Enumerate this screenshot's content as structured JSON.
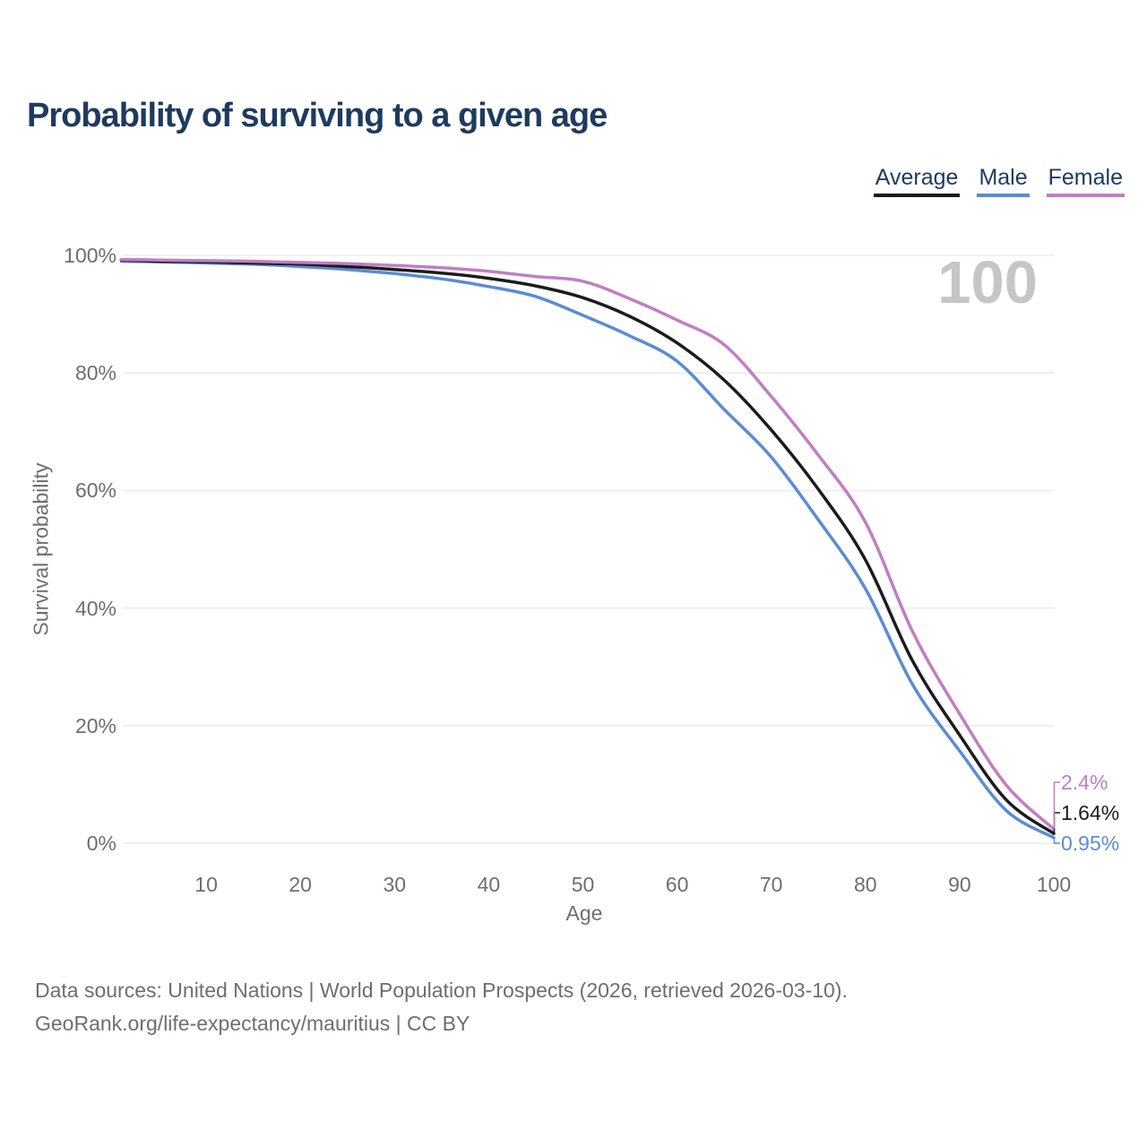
{
  "page": {
    "background": "#ffffff"
  },
  "header": {
    "title": "Probability of surviving to a given age"
  },
  "legend": {
    "items": [
      {
        "label": "Average",
        "color": "#1c1c1c"
      },
      {
        "label": "Male",
        "color": "#5b8bd5"
      },
      {
        "label": "Female",
        "color": "#c17ec2"
      }
    ]
  },
  "watermark": {
    "text": "100",
    "color": "#c6c6c6"
  },
  "footer": {
    "line1": "Data sources: United Nations | World Population Prospects (2026, retrieved 2026-03-10).",
    "line2": "GeoRank.org/life-expectancy/mauritius | CC BY"
  },
  "chart_data": {
    "type": "line",
    "title": "Probability of surviving to a given age",
    "xlabel": "Age",
    "ylabel": "Survival probability",
    "xlim": [
      1,
      100
    ],
    "ylim": [
      0,
      100
    ],
    "x_ticks": [
      10,
      20,
      30,
      40,
      50,
      60,
      70,
      80,
      90,
      100
    ],
    "y_ticks": [
      0,
      20,
      40,
      60,
      80,
      100
    ],
    "y_tick_suffix": "%",
    "grid": "horizontal",
    "legend_position": "top-right",
    "x": [
      1,
      5,
      10,
      15,
      20,
      25,
      30,
      35,
      40,
      45,
      50,
      55,
      60,
      65,
      70,
      75,
      80,
      85,
      90,
      95,
      100
    ],
    "series": [
      {
        "name": "Average",
        "color": "#1c1c1c",
        "end_label": "1.64%",
        "values": [
          99.2,
          99.0,
          98.9,
          98.7,
          98.5,
          98.1,
          97.6,
          97.0,
          96.1,
          94.8,
          92.8,
          89.6,
          85.1,
          78.8,
          70.3,
          60.2,
          48.2,
          31.0,
          18.4,
          7.3,
          1.64
        ]
      },
      {
        "name": "Male",
        "color": "#5b8bd5",
        "end_label": "0.95%",
        "values": [
          99.0,
          98.9,
          98.7,
          98.5,
          98.1,
          97.6,
          96.9,
          96.0,
          94.7,
          93.0,
          89.8,
          86.3,
          82.0,
          73.8,
          65.7,
          55.0,
          43.3,
          27.0,
          15.7,
          5.5,
          0.95
        ]
      },
      {
        "name": "Female",
        "color": "#c17ec2",
        "end_label": "2.4%",
        "values": [
          99.3,
          99.2,
          99.1,
          99.0,
          98.8,
          98.6,
          98.3,
          97.9,
          97.3,
          96.4,
          95.6,
          92.6,
          89.0,
          84.8,
          76.0,
          66.0,
          54.6,
          36.0,
          22.0,
          9.8,
          2.4
        ]
      }
    ]
  }
}
